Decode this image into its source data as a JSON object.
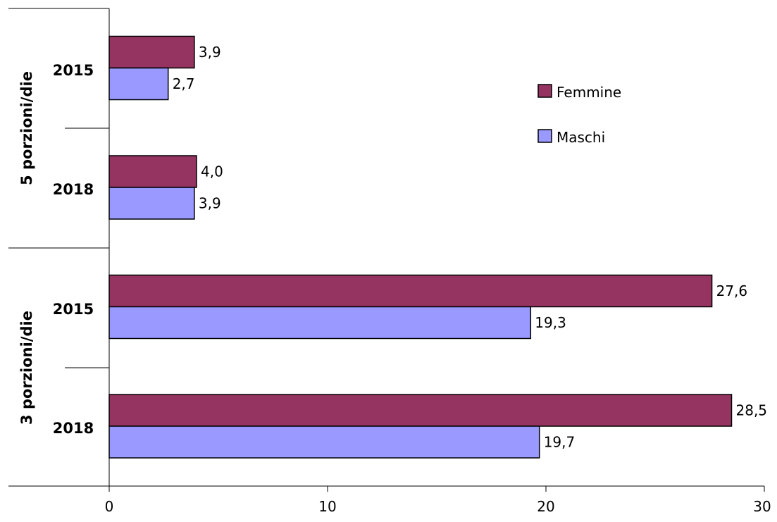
{
  "chart_data": {
    "type": "bar",
    "orientation": "horizontal",
    "groups": [
      {
        "label": "5 porzioni/die",
        "categories": [
          "2015",
          "2018"
        ]
      },
      {
        "label": "3 porzioni/die",
        "categories": [
          "2015",
          "2018"
        ]
      }
    ],
    "series": [
      {
        "name": "Femmine",
        "color": "#953461",
        "values": [
          3.9,
          4.0,
          27.6,
          28.5
        ],
        "labels": [
          "3,9",
          "4,0",
          "27,6",
          "28,5"
        ]
      },
      {
        "name": "Maschi",
        "color": "#9999FF",
        "values": [
          2.7,
          3.9,
          19.3,
          19.7
        ],
        "labels": [
          "2,7",
          "3,9",
          "19,3",
          "19,7"
        ]
      }
    ],
    "xlim": [
      0,
      30
    ],
    "xticks": [
      0,
      10,
      20,
      30
    ],
    "grid": false,
    "legend": "top-right"
  }
}
